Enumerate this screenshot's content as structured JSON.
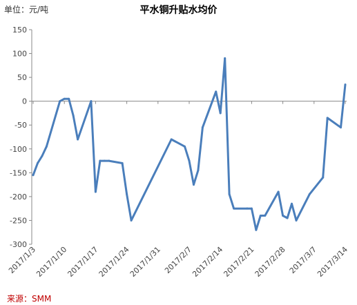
{
  "unit_label": "单位：元/吨",
  "source_label": "来源：SMM",
  "chart_data": {
    "type": "line",
    "title": "平水铜升贴水均价",
    "xlabel": "",
    "ylabel": "",
    "ylim": [
      -300,
      150
    ],
    "y_ticks": [
      "150",
      "100",
      "50",
      "0",
      "-50",
      "-100",
      "-150",
      "-200",
      "-250",
      "-300"
    ],
    "x_ticks": [
      "2017/1/3",
      "2017/1/10",
      "2017/1/17",
      "2017/1/24",
      "2017/1/31",
      "2017/2/7",
      "2017/2/14",
      "2017/2/21",
      "2017/2/28",
      "2017/3/7",
      "2017/3/14"
    ],
    "grid": false,
    "color": "#4a7ebb",
    "series": [
      {
        "x": [
          "2017/1/3",
          "2017/1/4",
          "2017/1/5",
          "2017/1/6",
          "2017/1/9",
          "2017/1/10",
          "2017/1/11",
          "2017/1/12",
          "2017/1/13",
          "2017/1/16",
          "2017/1/17",
          "2017/1/18",
          "2017/1/19",
          "2017/1/20",
          "2017/1/23",
          "2017/1/24",
          "2017/1/25",
          "2017/2/3",
          "2017/2/6",
          "2017/2/7",
          "2017/2/8",
          "2017/2/9",
          "2017/2/10",
          "2017/2/13",
          "2017/2/14",
          "2017/2/15",
          "2017/2/16",
          "2017/2/17",
          "2017/2/20",
          "2017/2/21",
          "2017/2/22",
          "2017/2/23",
          "2017/2/24",
          "2017/2/27",
          "2017/2/28",
          "2017/3/1",
          "2017/3/2",
          "2017/3/3",
          "2017/3/6",
          "2017/3/9",
          "2017/3/10",
          "2017/3/13",
          "2017/3/14"
        ],
        "values": [
          -155,
          -130,
          -115,
          -95,
          0,
          5,
          5,
          -30,
          -80,
          0,
          -190,
          -125,
          -125,
          -125,
          -130,
          -195,
          -250,
          -80,
          -95,
          -125,
          -175,
          -145,
          -55,
          20,
          -25,
          90,
          -195,
          -225,
          -225,
          -225,
          -270,
          -240,
          -240,
          -190,
          -240,
          -245,
          -215,
          -250,
          -195,
          -160,
          -35,
          -55,
          35
        ]
      }
    ]
  }
}
